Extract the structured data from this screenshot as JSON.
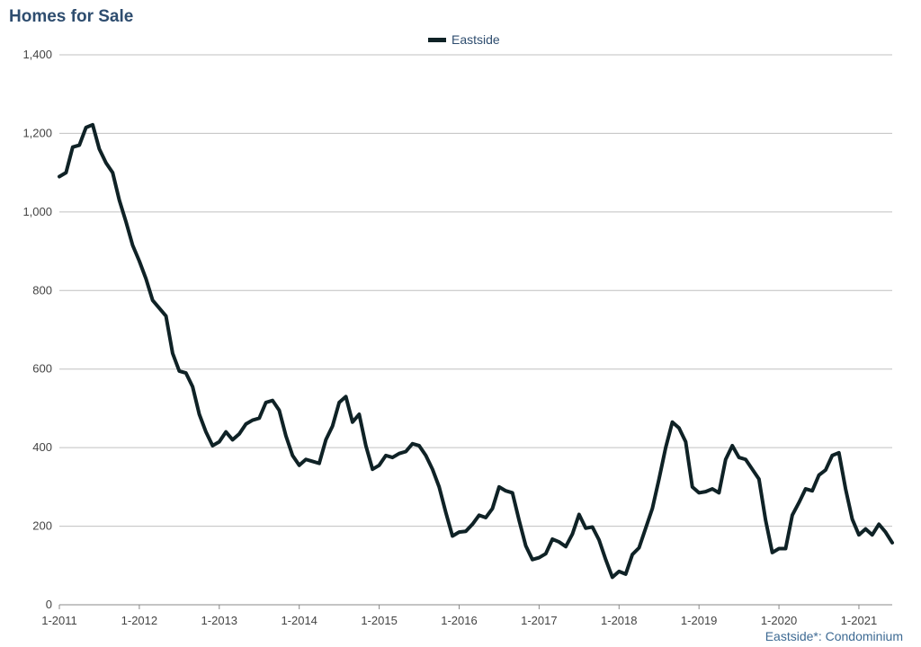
{
  "title": "Homes for Sale",
  "footnote": "Eastside*: Condominium",
  "colors": {
    "line": "#0f2226",
    "title": "#2e4d6f",
    "grid": "#c0c0c0",
    "footnote": "#3d6a93"
  },
  "chart_data": {
    "type": "line",
    "title": "Homes for Sale",
    "xlabel": "",
    "ylabel": "",
    "ylim": [
      0,
      1400
    ],
    "y_ticks": [
      0,
      200,
      400,
      600,
      800,
      1000,
      1200,
      1400
    ],
    "y_tick_labels": [
      "0",
      "200",
      "400",
      "600",
      "800",
      "1,000",
      "1,200",
      "1,400"
    ],
    "x_tick_labels": [
      "1-2011",
      "1-2012",
      "1-2013",
      "1-2014",
      "1-2015",
      "1-2016",
      "1-2017",
      "1-2018",
      "1-2019",
      "1-2020",
      "1-2021"
    ],
    "x_start": "2011-01",
    "legend": "top-center",
    "grid": true,
    "series": [
      {
        "name": "Eastside",
        "values": [
          1090,
          1100,
          1165,
          1170,
          1215,
          1222,
          1160,
          1125,
          1100,
          1030,
          975,
          915,
          875,
          830,
          775,
          755,
          735,
          640,
          595,
          590,
          555,
          485,
          440,
          405,
          415,
          440,
          420,
          435,
          460,
          470,
          475,
          515,
          520,
          495,
          430,
          380,
          355,
          370,
          365,
          360,
          420,
          455,
          515,
          530,
          465,
          485,
          405,
          345,
          355,
          380,
          375,
          385,
          390,
          410,
          405,
          380,
          345,
          300,
          235,
          175,
          185,
          187,
          205,
          228,
          222,
          245,
          300,
          290,
          285,
          215,
          150,
          115,
          120,
          130,
          167,
          160,
          148,
          180,
          230,
          195,
          198,
          165,
          115,
          70,
          85,
          78,
          128,
          145,
          195,
          245,
          320,
          400,
          465,
          450,
          415,
          300,
          285,
          288,
          295,
          285,
          370,
          405,
          375,
          370,
          345,
          320,
          215,
          133,
          143,
          143,
          228,
          260,
          295,
          290,
          330,
          343,
          380,
          387,
          295,
          218,
          178,
          193,
          178,
          205,
          185,
          158
        ]
      }
    ]
  }
}
